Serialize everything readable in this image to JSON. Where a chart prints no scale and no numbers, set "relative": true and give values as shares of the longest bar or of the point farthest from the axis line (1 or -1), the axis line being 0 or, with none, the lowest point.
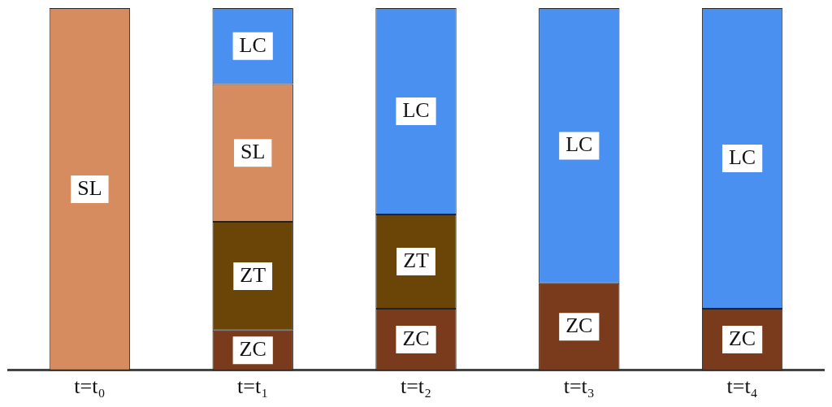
{
  "chart_data": {
    "type": "bar",
    "stacked": true,
    "relative": true,
    "legend": false,
    "grid": false,
    "tick_labels": "x",
    "categories": [
      "t=t₀",
      "t=t₁",
      "t=t₂",
      "t=t₃",
      "t=t₄"
    ],
    "series": [
      {
        "name": "ZC",
        "color": "#7a3a1c",
        "values": [
          null,
          0.11,
          0.17,
          0.24,
          0.17
        ]
      },
      {
        "name": "ZT",
        "color": "#6b4408",
        "values": [
          null,
          0.3,
          0.26,
          null,
          null
        ]
      },
      {
        "name": "SL",
        "color": "#d68c5e",
        "values": [
          1,
          0.38,
          null,
          null,
          null
        ]
      },
      {
        "name": "LC",
        "color": "#4a90f0",
        "values": [
          null,
          0.21,
          0.57,
          0.76,
          0.83
        ]
      }
    ]
  }
}
